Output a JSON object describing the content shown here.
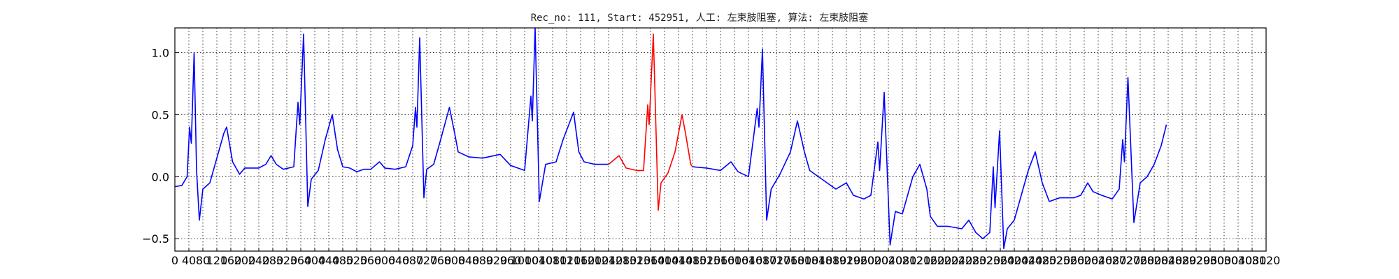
{
  "chart_data": {
    "type": "line",
    "title": "Rec_no: 111, Start: 452951, 人工: 左束肢阻塞, 算法: 左束肢阻塞",
    "xlabel": "",
    "ylabel": "",
    "xlim": [
      0,
      3120
    ],
    "ylim": [
      -0.6,
      1.2
    ],
    "grid": true,
    "grid_style": "dotted",
    "x_ticks": [
      0,
      40,
      80,
      120,
      160,
      200,
      240,
      280,
      320,
      360,
      400,
      440,
      480,
      520,
      560,
      600,
      640,
      680,
      720,
      760,
      800,
      840,
      880,
      920,
      960,
      1000,
      1040,
      1080,
      1120,
      1160,
      1200,
      1240,
      1280,
      1320,
      1360,
      1400,
      1440,
      1480,
      1520,
      1560,
      1600,
      1640,
      1680,
      1720,
      1760,
      1800,
      1840,
      1880,
      1920,
      1960,
      2000,
      2040,
      2080,
      2120,
      2160,
      2200,
      2240,
      2280,
      2320,
      2360,
      2400,
      2440,
      2480,
      2520,
      2560,
      2600,
      2640,
      2680,
      2720,
      2760,
      2800,
      2840,
      2880,
      2920,
      2960,
      3000,
      3040,
      3080,
      3120
    ],
    "x_tick_labels": [
      "0",
      "40",
      "80",
      "120",
      "160",
      "200",
      "240",
      "280",
      "320",
      "360",
      "400",
      "440",
      "480",
      "520",
      "560",
      "600",
      "640",
      "680",
      "720",
      "760",
      "800",
      "840",
      "880",
      "920",
      "960",
      "1000",
      "1040",
      "1080",
      "1120",
      "1160",
      "1200",
      "1240",
      "1280",
      "1320",
      "1360",
      "1400",
      "1440",
      "1480",
      "1520",
      "1560",
      "1600",
      "1640",
      "1680",
      "1720",
      "1760",
      "1800",
      "1840",
      "1880",
      "1920",
      "1960",
      "2000",
      "2040",
      "2080",
      "2120",
      "2160",
      "2200",
      "2240",
      "2280",
      "2320",
      "2360",
      "2400",
      "2440",
      "2480",
      "2520",
      "2560",
      "2600",
      "2640",
      "2680",
      "2720",
      "2760",
      "2800",
      "2840",
      "2880",
      "2920",
      "2960",
      "3000",
      "3040",
      "3080",
      "3120"
    ],
    "y_ticks": [
      -0.5,
      0.0,
      0.5,
      1.0
    ],
    "y_tick_labels": [
      "−0.5",
      "0.0",
      "0.5",
      "1.0"
    ],
    "series": [
      {
        "color": "#0000ff",
        "points": [
          [
            0,
            -0.08
          ],
          [
            20,
            -0.07
          ],
          [
            35,
            0.0
          ],
          [
            42,
            0.4
          ],
          [
            47,
            0.27
          ],
          [
            55,
            1.0
          ],
          [
            62,
            0.05
          ],
          [
            70,
            -0.35
          ],
          [
            80,
            -0.1
          ],
          [
            100,
            -0.05
          ],
          [
            120,
            0.15
          ],
          [
            140,
            0.35
          ],
          [
            148,
            0.4
          ],
          [
            165,
            0.12
          ],
          [
            175,
            0.07
          ],
          [
            185,
            0.02
          ],
          [
            200,
            0.07
          ],
          [
            240,
            0.07
          ],
          [
            260,
            0.1
          ],
          [
            275,
            0.17
          ],
          [
            290,
            0.1
          ],
          [
            310,
            0.06
          ],
          [
            340,
            0.08
          ],
          [
            352,
            0.6
          ],
          [
            357,
            0.42
          ],
          [
            368,
            1.15
          ],
          [
            380,
            -0.24
          ],
          [
            390,
            -0.02
          ],
          [
            410,
            0.05
          ],
          [
            430,
            0.3
          ],
          [
            450,
            0.5
          ],
          [
            465,
            0.22
          ],
          [
            480,
            0.08
          ],
          [
            500,
            0.07
          ],
          [
            520,
            0.04
          ],
          [
            540,
            0.06
          ],
          [
            560,
            0.06
          ],
          [
            585,
            0.12
          ],
          [
            600,
            0.07
          ],
          [
            630,
            0.06
          ],
          [
            660,
            0.08
          ],
          [
            680,
            0.25
          ],
          [
            688,
            0.56
          ],
          [
            692,
            0.4
          ],
          [
            700,
            1.12
          ],
          [
            712,
            -0.17
          ],
          [
            720,
            0.06
          ],
          [
            740,
            0.1
          ],
          [
            760,
            0.3
          ],
          [
            785,
            0.56
          ],
          [
            800,
            0.35
          ],
          [
            810,
            0.2
          ],
          [
            840,
            0.16
          ],
          [
            880,
            0.15
          ],
          [
            930,
            0.18
          ],
          [
            960,
            0.09
          ],
          [
            1000,
            0.05
          ],
          [
            1018,
            0.65
          ],
          [
            1022,
            0.45
          ],
          [
            1030,
            1.2
          ],
          [
            1042,
            -0.2
          ],
          [
            1060,
            0.1
          ],
          [
            1090,
            0.12
          ],
          [
            1110,
            0.3
          ],
          [
            1140,
            0.52
          ],
          [
            1155,
            0.2
          ],
          [
            1170,
            0.12
          ],
          [
            1200,
            0.1
          ],
          [
            1240,
            0.1
          ]
        ]
      },
      {
        "color": "#ff0000",
        "points": [
          [
            1240,
            0.1
          ],
          [
            1270,
            0.17
          ],
          [
            1290,
            0.07
          ],
          [
            1320,
            0.05
          ],
          [
            1340,
            0.05
          ],
          [
            1352,
            0.58
          ],
          [
            1356,
            0.42
          ],
          [
            1368,
            1.15
          ],
          [
            1382,
            -0.27
          ],
          [
            1390,
            -0.05
          ],
          [
            1410,
            0.03
          ],
          [
            1430,
            0.2
          ],
          [
            1450,
            0.5
          ],
          [
            1460,
            0.35
          ],
          [
            1475,
            0.1
          ],
          [
            1480,
            0.08
          ]
        ]
      },
      {
        "color": "#0000ff",
        "points": [
          [
            1480,
            0.08
          ],
          [
            1520,
            0.07
          ],
          [
            1560,
            0.05
          ],
          [
            1590,
            0.12
          ],
          [
            1610,
            0.04
          ],
          [
            1640,
            0.0
          ],
          [
            1665,
            0.55
          ],
          [
            1670,
            0.4
          ],
          [
            1680,
            1.03
          ],
          [
            1692,
            -0.35
          ],
          [
            1705,
            -0.1
          ],
          [
            1730,
            0.02
          ],
          [
            1760,
            0.2
          ],
          [
            1780,
            0.45
          ],
          [
            1800,
            0.2
          ],
          [
            1815,
            0.05
          ],
          [
            1850,
            -0.02
          ],
          [
            1890,
            -0.1
          ],
          [
            1920,
            -0.05
          ],
          [
            1940,
            -0.15
          ],
          [
            1970,
            -0.18
          ],
          [
            1990,
            -0.15
          ],
          [
            2010,
            0.28
          ],
          [
            2015,
            0.05
          ],
          [
            2028,
            0.68
          ],
          [
            2045,
            -0.55
          ],
          [
            2060,
            -0.28
          ],
          [
            2080,
            -0.3
          ],
          [
            2110,
            0.0
          ],
          [
            2130,
            0.1
          ],
          [
            2150,
            -0.1
          ],
          [
            2160,
            -0.32
          ],
          [
            2180,
            -0.4
          ],
          [
            2210,
            -0.4
          ],
          [
            2250,
            -0.42
          ],
          [
            2270,
            -0.35
          ],
          [
            2290,
            -0.45
          ],
          [
            2310,
            -0.5
          ],
          [
            2330,
            -0.45
          ],
          [
            2340,
            0.08
          ],
          [
            2345,
            -0.25
          ],
          [
            2358,
            0.37
          ],
          [
            2370,
            -0.58
          ],
          [
            2380,
            -0.42
          ],
          [
            2400,
            -0.35
          ],
          [
            2420,
            -0.15
          ],
          [
            2440,
            0.05
          ],
          [
            2460,
            0.2
          ],
          [
            2480,
            -0.05
          ],
          [
            2500,
            -0.2
          ],
          [
            2530,
            -0.17
          ],
          [
            2570,
            -0.17
          ],
          [
            2590,
            -0.15
          ],
          [
            2610,
            -0.05
          ],
          [
            2625,
            -0.12
          ],
          [
            2650,
            -0.15
          ],
          [
            2680,
            -0.18
          ],
          [
            2700,
            -0.1
          ],
          [
            2710,
            0.3
          ],
          [
            2715,
            0.12
          ],
          [
            2725,
            0.8
          ],
          [
            2742,
            -0.37
          ],
          [
            2760,
            -0.05
          ],
          [
            2780,
            0.0
          ],
          [
            2800,
            0.1
          ],
          [
            2820,
            0.25
          ],
          [
            2835,
            0.42
          ]
        ]
      }
    ]
  }
}
